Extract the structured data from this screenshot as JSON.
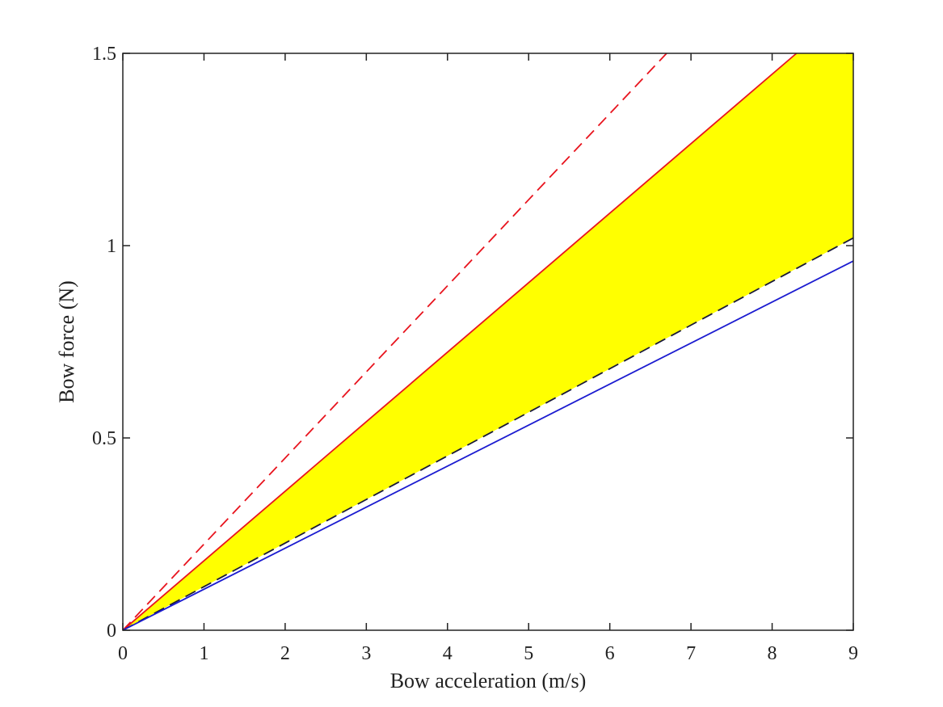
{
  "chart_data": {
    "type": "line",
    "xlabel": "Bow acceleration (m/s)",
    "ylabel": "Bow force (N)",
    "xlim": [
      0,
      9
    ],
    "ylim": [
      0,
      1.5
    ],
    "x_ticks": [
      "0",
      "1",
      "2",
      "3",
      "4",
      "5",
      "6",
      "7",
      "8",
      "9"
    ],
    "y_ticks": [
      "0",
      "0.5",
      "1",
      "1.5"
    ],
    "grid": false,
    "legend": "none",
    "series": [
      {
        "style": "dashed",
        "color": "#e8141e",
        "x": [
          0,
          6.7
        ],
        "y": [
          0,
          1.5
        ]
      },
      {
        "style": "solid",
        "color": "#e8141e",
        "x": [
          0,
          8.3
        ],
        "y": [
          0,
          1.5
        ]
      },
      {
        "style": "dashed",
        "color": "#1a1a3a",
        "x": [
          0,
          9
        ],
        "y": [
          0,
          1.02
        ]
      },
      {
        "style": "solid",
        "color": "#1b1bd0",
        "x": [
          0,
          9
        ],
        "y": [
          0,
          0.96
        ]
      }
    ],
    "fill": {
      "color": "#ffff00",
      "between": [
        "solid red upper",
        "dashed dark lower"
      ],
      "upper": {
        "x": [
          0,
          8.3,
          9
        ],
        "y": [
          0,
          1.5,
          1.5
        ]
      },
      "lower": {
        "x": [
          0,
          9
        ],
        "y": [
          0,
          1.02
        ]
      }
    }
  }
}
